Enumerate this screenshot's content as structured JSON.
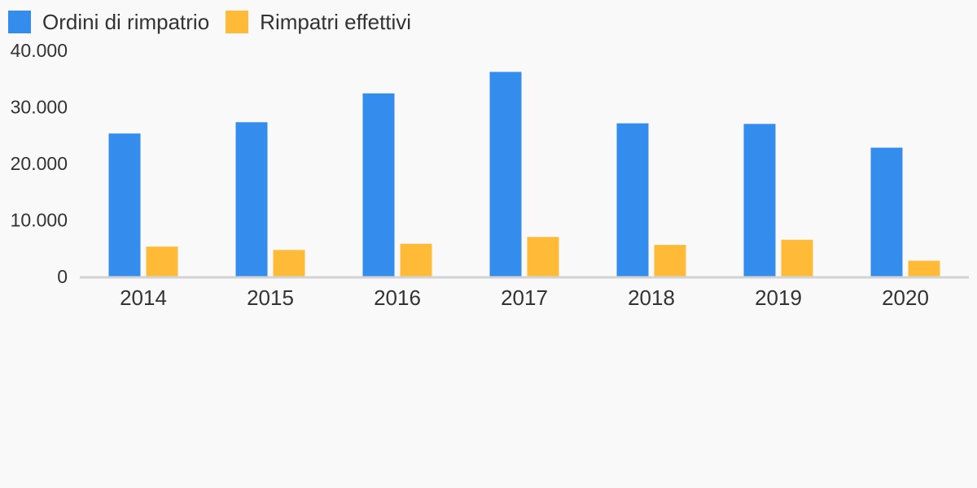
{
  "chart_data": {
    "type": "bar",
    "categories": [
      "2014",
      "2015",
      "2016",
      "2017",
      "2018",
      "2019",
      "2020"
    ],
    "series": [
      {
        "name": "Ordini di rimpatrio",
        "color": "#348ced",
        "values": [
          25300,
          27300,
          32400,
          36200,
          27100,
          27000,
          22800
        ]
      },
      {
        "name": "Rimpatri effettivi",
        "color": "#ffbb38",
        "values": [
          5300,
          4700,
          5800,
          7000,
          5600,
          6500,
          2800
        ]
      }
    ],
    "y_ticks": [
      0,
      10000,
      20000,
      30000,
      40000
    ],
    "y_tick_labels": [
      "0",
      "10.000",
      "20.000",
      "30.000",
      "40.000"
    ],
    "ylim": [
      0,
      40000
    ],
    "title": "",
    "xlabel": "",
    "ylabel": "",
    "legend_position": "top-left",
    "grid": false,
    "baseline_color": "#d3d3d3"
  }
}
